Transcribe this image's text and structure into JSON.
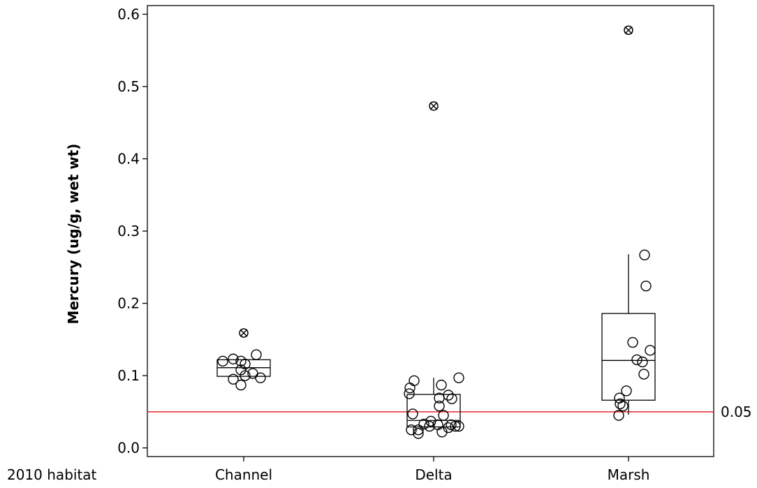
{
  "chart_data": {
    "type": "boxplot",
    "title": "",
    "xlabel": "",
    "ylabel": "Mercury (ug/g, wet wt)",
    "x_axis_caption": "2010 habitat",
    "ylim": [
      -0.012,
      0.612
    ],
    "yticks": [
      0.0,
      0.1,
      0.2,
      0.3,
      0.4,
      0.5,
      0.6
    ],
    "ytick_labels": [
      "0.0",
      "0.1",
      "0.2",
      "0.3",
      "0.4",
      "0.5",
      "0.6"
    ],
    "grid": false,
    "reference_line": {
      "value": 0.05,
      "label": "0.05",
      "color": "#e8262b"
    },
    "categories": [
      "Channel",
      "Delta",
      "Marsh"
    ],
    "boxes": [
      {
        "category": "Channel",
        "q1": 0.099,
        "median": 0.111,
        "q3": 0.122,
        "whisker_low": 0.099,
        "whisker_high": 0.122,
        "outliers": [
          0.159
        ]
      },
      {
        "category": "Delta",
        "q1": 0.029,
        "median": 0.038,
        "q3": 0.074,
        "whisker_low": 0.029,
        "whisker_high": 0.097,
        "outliers": [
          0.473
        ]
      },
      {
        "category": "Marsh",
        "q1": 0.066,
        "median": 0.121,
        "q3": 0.186,
        "whisker_low": 0.046,
        "whisker_high": 0.268,
        "outliers": [
          0.578
        ]
      }
    ],
    "points": [
      {
        "category": "Channel",
        "jitter": -0.3,
        "value": 0.12
      },
      {
        "category": "Channel",
        "jitter": -0.15,
        "value": 0.123
      },
      {
        "category": "Channel",
        "jitter": -0.04,
        "value": 0.12
      },
      {
        "category": "Channel",
        "jitter": 0.02,
        "value": 0.116
      },
      {
        "category": "Channel",
        "jitter": 0.18,
        "value": 0.129
      },
      {
        "category": "Channel",
        "jitter": -0.15,
        "value": 0.095
      },
      {
        "category": "Channel",
        "jitter": -0.04,
        "value": 0.108
      },
      {
        "category": "Channel",
        "jitter": 0.02,
        "value": 0.1
      },
      {
        "category": "Channel",
        "jitter": 0.13,
        "value": 0.103
      },
      {
        "category": "Channel",
        "jitter": 0.24,
        "value": 0.097
      },
      {
        "category": "Channel",
        "jitter": -0.04,
        "value": 0.087
      },
      {
        "category": "Delta",
        "jitter": -0.28,
        "value": 0.093
      },
      {
        "category": "Delta",
        "jitter": -0.34,
        "value": 0.083
      },
      {
        "category": "Delta",
        "jitter": -0.35,
        "value": 0.075
      },
      {
        "category": "Delta",
        "jitter": 0.11,
        "value": 0.087
      },
      {
        "category": "Delta",
        "jitter": 0.21,
        "value": 0.073
      },
      {
        "category": "Delta",
        "jitter": 0.26,
        "value": 0.068
      },
      {
        "category": "Delta",
        "jitter": 0.36,
        "value": 0.097
      },
      {
        "category": "Delta",
        "jitter": 0.08,
        "value": 0.069
      },
      {
        "category": "Delta",
        "jitter": 0.08,
        "value": 0.058
      },
      {
        "category": "Delta",
        "jitter": -0.3,
        "value": 0.047
      },
      {
        "category": "Delta",
        "jitter": 0.14,
        "value": 0.045
      },
      {
        "category": "Delta",
        "jitter": -0.04,
        "value": 0.037
      },
      {
        "category": "Delta",
        "jitter": -0.14,
        "value": 0.033
      },
      {
        "category": "Delta",
        "jitter": 0.06,
        "value": 0.032
      },
      {
        "category": "Delta",
        "jitter": -0.06,
        "value": 0.03
      },
      {
        "category": "Delta",
        "jitter": 0.25,
        "value": 0.032
      },
      {
        "category": "Delta",
        "jitter": 0.31,
        "value": 0.03
      },
      {
        "category": "Delta",
        "jitter": 0.36,
        "value": 0.03
      },
      {
        "category": "Delta",
        "jitter": -0.32,
        "value": 0.025
      },
      {
        "category": "Delta",
        "jitter": -0.22,
        "value": 0.025
      },
      {
        "category": "Delta",
        "jitter": -0.22,
        "value": 0.02
      },
      {
        "category": "Delta",
        "jitter": 0.12,
        "value": 0.022
      },
      {
        "category": "Delta",
        "jitter": 0.21,
        "value": 0.028
      },
      {
        "category": "Marsh",
        "jitter": 0.23,
        "value": 0.267
      },
      {
        "category": "Marsh",
        "jitter": 0.25,
        "value": 0.224
      },
      {
        "category": "Marsh",
        "jitter": 0.06,
        "value": 0.146
      },
      {
        "category": "Marsh",
        "jitter": 0.31,
        "value": 0.135
      },
      {
        "category": "Marsh",
        "jitter": 0.12,
        "value": 0.122
      },
      {
        "category": "Marsh",
        "jitter": 0.2,
        "value": 0.119
      },
      {
        "category": "Marsh",
        "jitter": 0.22,
        "value": 0.102
      },
      {
        "category": "Marsh",
        "jitter": -0.03,
        "value": 0.079
      },
      {
        "category": "Marsh",
        "jitter": -0.13,
        "value": 0.069
      },
      {
        "category": "Marsh",
        "jitter": -0.12,
        "value": 0.061
      },
      {
        "category": "Marsh",
        "jitter": -0.08,
        "value": 0.058
      },
      {
        "category": "Marsh",
        "jitter": -0.14,
        "value": 0.045
      }
    ]
  }
}
